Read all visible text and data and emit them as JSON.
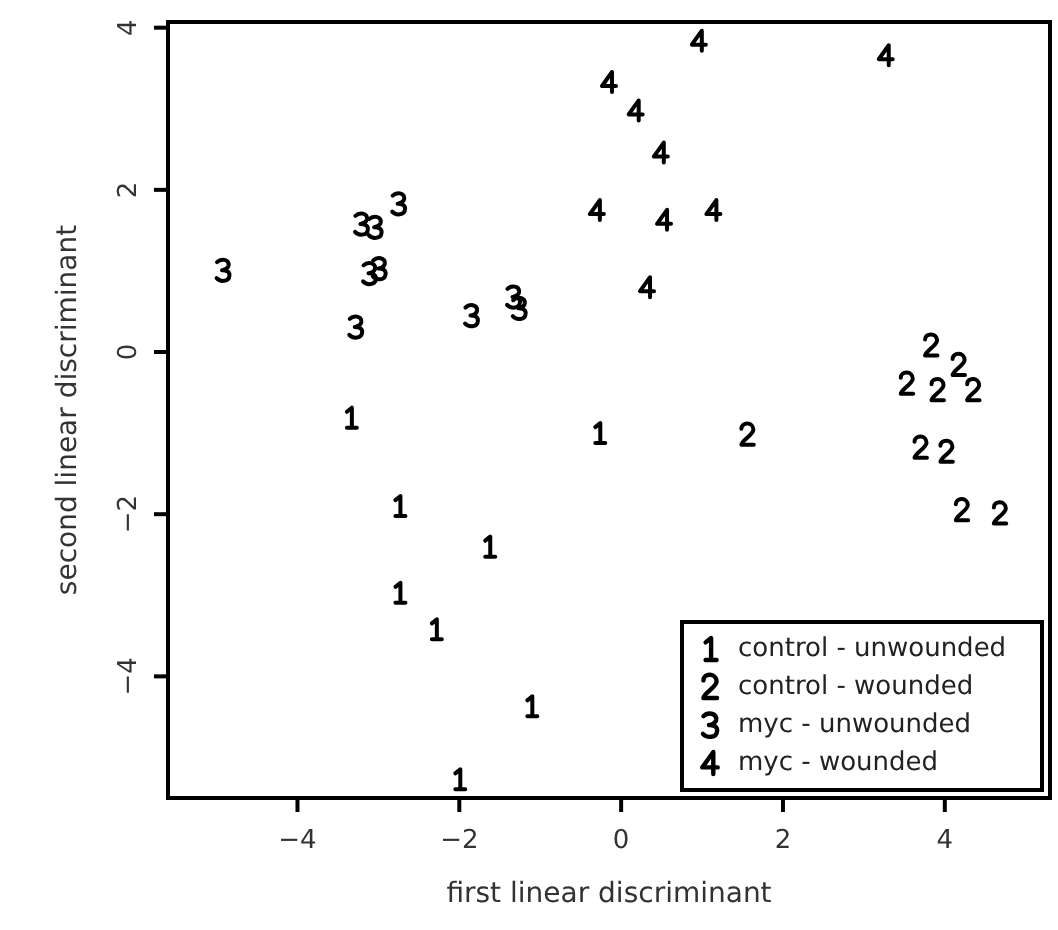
{
  "chart_data": {
    "type": "scatter",
    "xlabel": "first linear discriminant",
    "ylabel": "second linear discriminant",
    "xlim": [
      -5.6,
      5.3
    ],
    "ylim": [
      -5.5,
      4.07
    ],
    "xticks": [
      -4,
      -2,
      0,
      2,
      4
    ],
    "yticks": [
      -4,
      -2,
      0,
      2,
      4
    ],
    "grid": false,
    "legend": "bottom right",
    "series": [
      {
        "name": "control - unwounded",
        "color": "#000000",
        "x": [
          -3.34,
          -0.27,
          -2.74,
          -1.63,
          -2.74,
          -2.29,
          -1.11,
          -2.0
        ],
        "values": [
          -0.81,
          -1.0,
          -1.9,
          -2.4,
          -2.97,
          -3.42,
          -4.37,
          -5.27
        ]
      },
      {
        "name": "control - wounded",
        "color": "#000000",
        "x": [
          1.56,
          3.83,
          4.17,
          3.53,
          3.91,
          4.35,
          3.7,
          4.02,
          4.21,
          4.68
        ],
        "values": [
          -1.02,
          0.08,
          -0.16,
          -0.39,
          -0.47,
          -0.47,
          -1.18,
          -1.23,
          -1.95,
          -1.99
        ]
      },
      {
        "name": "myc - unwounded",
        "color": "#000000",
        "x": [
          -4.92,
          -3.21,
          -3.04,
          -2.75,
          -3.11,
          -2.99,
          -3.28,
          -1.85,
          -1.33,
          -1.26
        ],
        "values": [
          1.01,
          1.58,
          1.54,
          1.83,
          0.97,
          1.03,
          0.31,
          0.45,
          0.68,
          0.54
        ]
      },
      {
        "name": "myc - wounded",
        "color": "#000000",
        "x": [
          0.96,
          3.27,
          -0.15,
          0.18,
          0.49,
          -0.3,
          0.53,
          1.14,
          0.32
        ],
        "values": [
          3.84,
          3.66,
          3.33,
          2.98,
          2.46,
          1.75,
          1.63,
          1.75,
          0.8
        ]
      }
    ]
  }
}
